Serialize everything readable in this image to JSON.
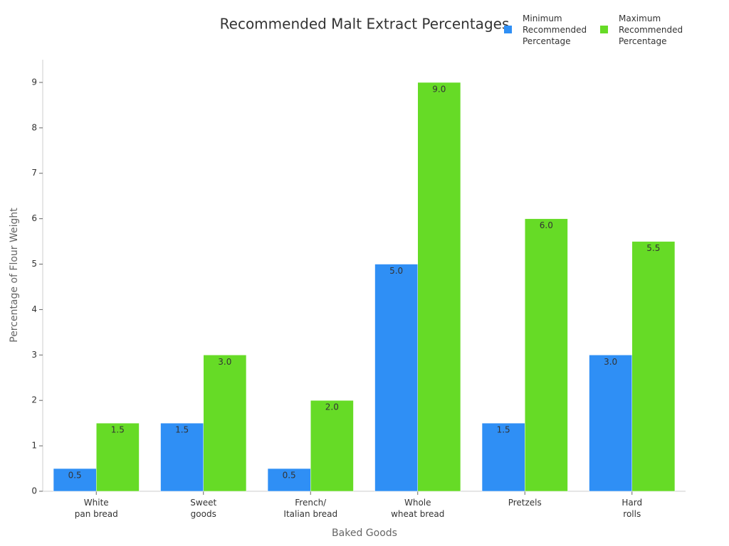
{
  "chart_data": {
    "type": "bar",
    "title": "Recommended Malt Extract Percentages",
    "x_label": "Baked Goods",
    "y_label": "Percentage of Flour Weight",
    "categories": [
      "White\npan bread",
      "Sweet\ngoods",
      "French/\nItalian bread",
      "Whole\nwheat bread",
      "Pretzels",
      "Hard\nrolls"
    ],
    "series": [
      {
        "name": "Minimum\nRecommended\nPercentage",
        "color": "#2f8ff5",
        "values": [
          0.5,
          1.5,
          0.5,
          5,
          1.5,
          3
        ],
        "value_labels": [
          "0.5",
          "1.5",
          "0.5",
          "5.0",
          "1.5",
          "3.0"
        ]
      },
      {
        "name": "Maximum\nRecommended\nPercentage",
        "color": "#66db26",
        "values": [
          1.5,
          3,
          2,
          9,
          6,
          5.5
        ],
        "value_labels": [
          "1.5",
          "3.0",
          "2.0",
          "9.0",
          "6.0",
          "5.5"
        ]
      }
    ],
    "ylim": [
      0,
      9.5
    ],
    "yticks": [
      0,
      1,
      2,
      3,
      4,
      5,
      6,
      7,
      8,
      9
    ],
    "grid": false,
    "legend": "top-right"
  }
}
